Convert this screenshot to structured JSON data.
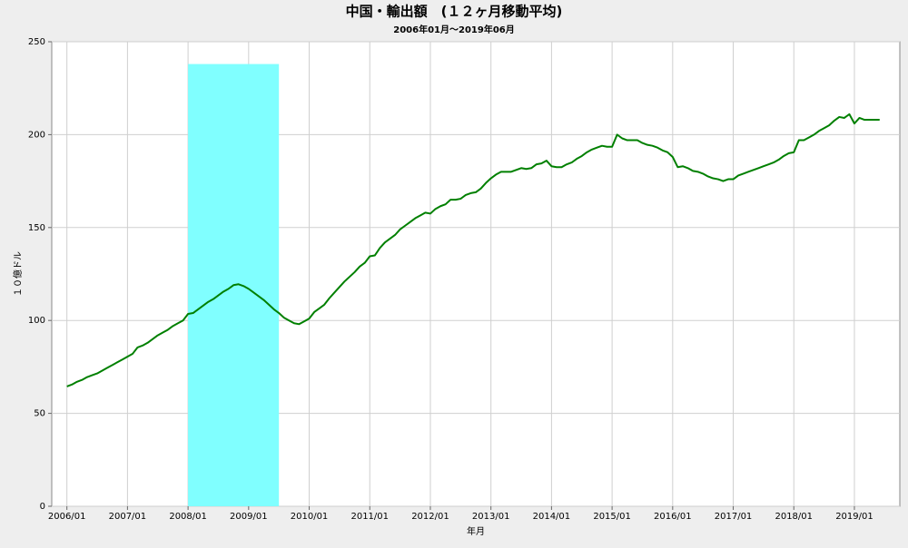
{
  "chart_data": {
    "type": "line",
    "title": "中国・輸出額　(１２ヶ月移動平均)",
    "subtitle": "2006年01月～2019年06月",
    "xlabel": "年月",
    "ylabel": "１０億ドル",
    "color": "#008000",
    "x": [
      "2006/01",
      "2006/02",
      "2006/03",
      "2006/04",
      "2006/05",
      "2006/06",
      "2006/07",
      "2006/08",
      "2006/09",
      "2006/10",
      "2006/11",
      "2006/12",
      "2007/01",
      "2007/02",
      "2007/03",
      "2007/04",
      "2007/05",
      "2007/06",
      "2007/07",
      "2007/08",
      "2007/09",
      "2007/10",
      "2007/11",
      "2007/12",
      "2008/01",
      "2008/02",
      "2008/03",
      "2008/04",
      "2008/05",
      "2008/06",
      "2008/07",
      "2008/08",
      "2008/09",
      "2008/10",
      "2008/11",
      "2008/12",
      "2009/01",
      "2009/02",
      "2009/03",
      "2009/04",
      "2009/05",
      "2009/06",
      "2009/07",
      "2009/08",
      "2009/09",
      "2009/10",
      "2009/11",
      "2009/12",
      "2010/01",
      "2010/02",
      "2010/03",
      "2010/04",
      "2010/05",
      "2010/06",
      "2010/07",
      "2010/08",
      "2010/09",
      "2010/10",
      "2010/11",
      "2010/12",
      "2011/01",
      "2011/02",
      "2011/03",
      "2011/04",
      "2011/05",
      "2011/06",
      "2011/07",
      "2011/08",
      "2011/09",
      "2011/10",
      "2011/11",
      "2011/12",
      "2012/01",
      "2012/02",
      "2012/03",
      "2012/04",
      "2012/05",
      "2012/06",
      "2012/07",
      "2012/08",
      "2012/09",
      "2012/10",
      "2012/11",
      "2012/12",
      "2013/01",
      "2013/02",
      "2013/03",
      "2013/04",
      "2013/05",
      "2013/06",
      "2013/07",
      "2013/08",
      "2013/09",
      "2013/10",
      "2013/11",
      "2013/12",
      "2014/01",
      "2014/02",
      "2014/03",
      "2014/04",
      "2014/05",
      "2014/06",
      "2014/07",
      "2014/08",
      "2014/09",
      "2014/10",
      "2014/11",
      "2014/12",
      "2015/01",
      "2015/02",
      "2015/03",
      "2015/04",
      "2015/05",
      "2015/06",
      "2015/07",
      "2015/08",
      "2015/09",
      "2015/10",
      "2015/11",
      "2015/12",
      "2016/01",
      "2016/02",
      "2016/03",
      "2016/04",
      "2016/05",
      "2016/06",
      "2016/07",
      "2016/08",
      "2016/09",
      "2016/10",
      "2016/11",
      "2016/12",
      "2017/01",
      "2017/02",
      "2017/03",
      "2017/04",
      "2017/05",
      "2017/06",
      "2017/07",
      "2017/08",
      "2017/09",
      "2017/10",
      "2017/11",
      "2017/12",
      "2018/01",
      "2018/02",
      "2018/03",
      "2018/04",
      "2018/05",
      "2018/06",
      "2018/07",
      "2018/08",
      "2018/09",
      "2018/10",
      "2018/11",
      "2018/12",
      "2019/01",
      "2019/02",
      "2019/03",
      "2019/04",
      "2019/05",
      "2019/06"
    ],
    "values": [
      64.5,
      65.5,
      67,
      68,
      69.5,
      70.5,
      71.5,
      73,
      74.5,
      76,
      77.5,
      79,
      80.5,
      82,
      85.5,
      86.5,
      88,
      90,
      92,
      93.5,
      95,
      97,
      98.5,
      100,
      103.5,
      104,
      106,
      108,
      110,
      111.5,
      113.5,
      115.5,
      117,
      119,
      119.5,
      118.5,
      117,
      115,
      113,
      111,
      108.5,
      106,
      104,
      101.5,
      100,
      98.5,
      98,
      99.5,
      101,
      104.5,
      106.5,
      108.5,
      112,
      115,
      118,
      121,
      123.5,
      126,
      129,
      131,
      134.5,
      135,
      139,
      142,
      144,
      146,
      149,
      151,
      153,
      155,
      156.5,
      158,
      157.5,
      160,
      161.5,
      162.5,
      165,
      165,
      165.5,
      167.5,
      168.5,
      169,
      171,
      174,
      176.5,
      178.5,
      180,
      180,
      180,
      181,
      182,
      181.5,
      182,
      184,
      184.5,
      186,
      183,
      182.5,
      182.5,
      184,
      185,
      187,
      188.5,
      190.5,
      192,
      193,
      194,
      193.5,
      193.5,
      200,
      198,
      197,
      197,
      197,
      195.5,
      194.5,
      194,
      193,
      191.5,
      190.5,
      188,
      182.5,
      183,
      182,
      180.5,
      180,
      179,
      177.5,
      176.5,
      176,
      175,
      176,
      176,
      178,
      179,
      180,
      181,
      182,
      183,
      184,
      185,
      186.5,
      188.5,
      190,
      190.5,
      197,
      197,
      198.5,
      200,
      202,
      203.5,
      205,
      207.5,
      209.5,
      209,
      211,
      206,
      209,
      208,
      208,
      208,
      208
    ],
    "shade": {
      "x": [
        "2008/01",
        "2009/07"
      ],
      "y": 238,
      "color": "#80ffff"
    },
    "xlim": [
      "2005/10",
      "2019/10"
    ],
    "xticks": [
      "2006/01",
      "2007/01",
      "2008/01",
      "2009/01",
      "2010/01",
      "2011/01",
      "2012/01",
      "2013/01",
      "2014/01",
      "2015/01",
      "2016/01",
      "2017/01",
      "2018/01",
      "2019/01"
    ],
    "ylim": [
      0,
      250
    ],
    "yticks": [
      0,
      50,
      100,
      150,
      200,
      250
    ],
    "grid": true
  }
}
